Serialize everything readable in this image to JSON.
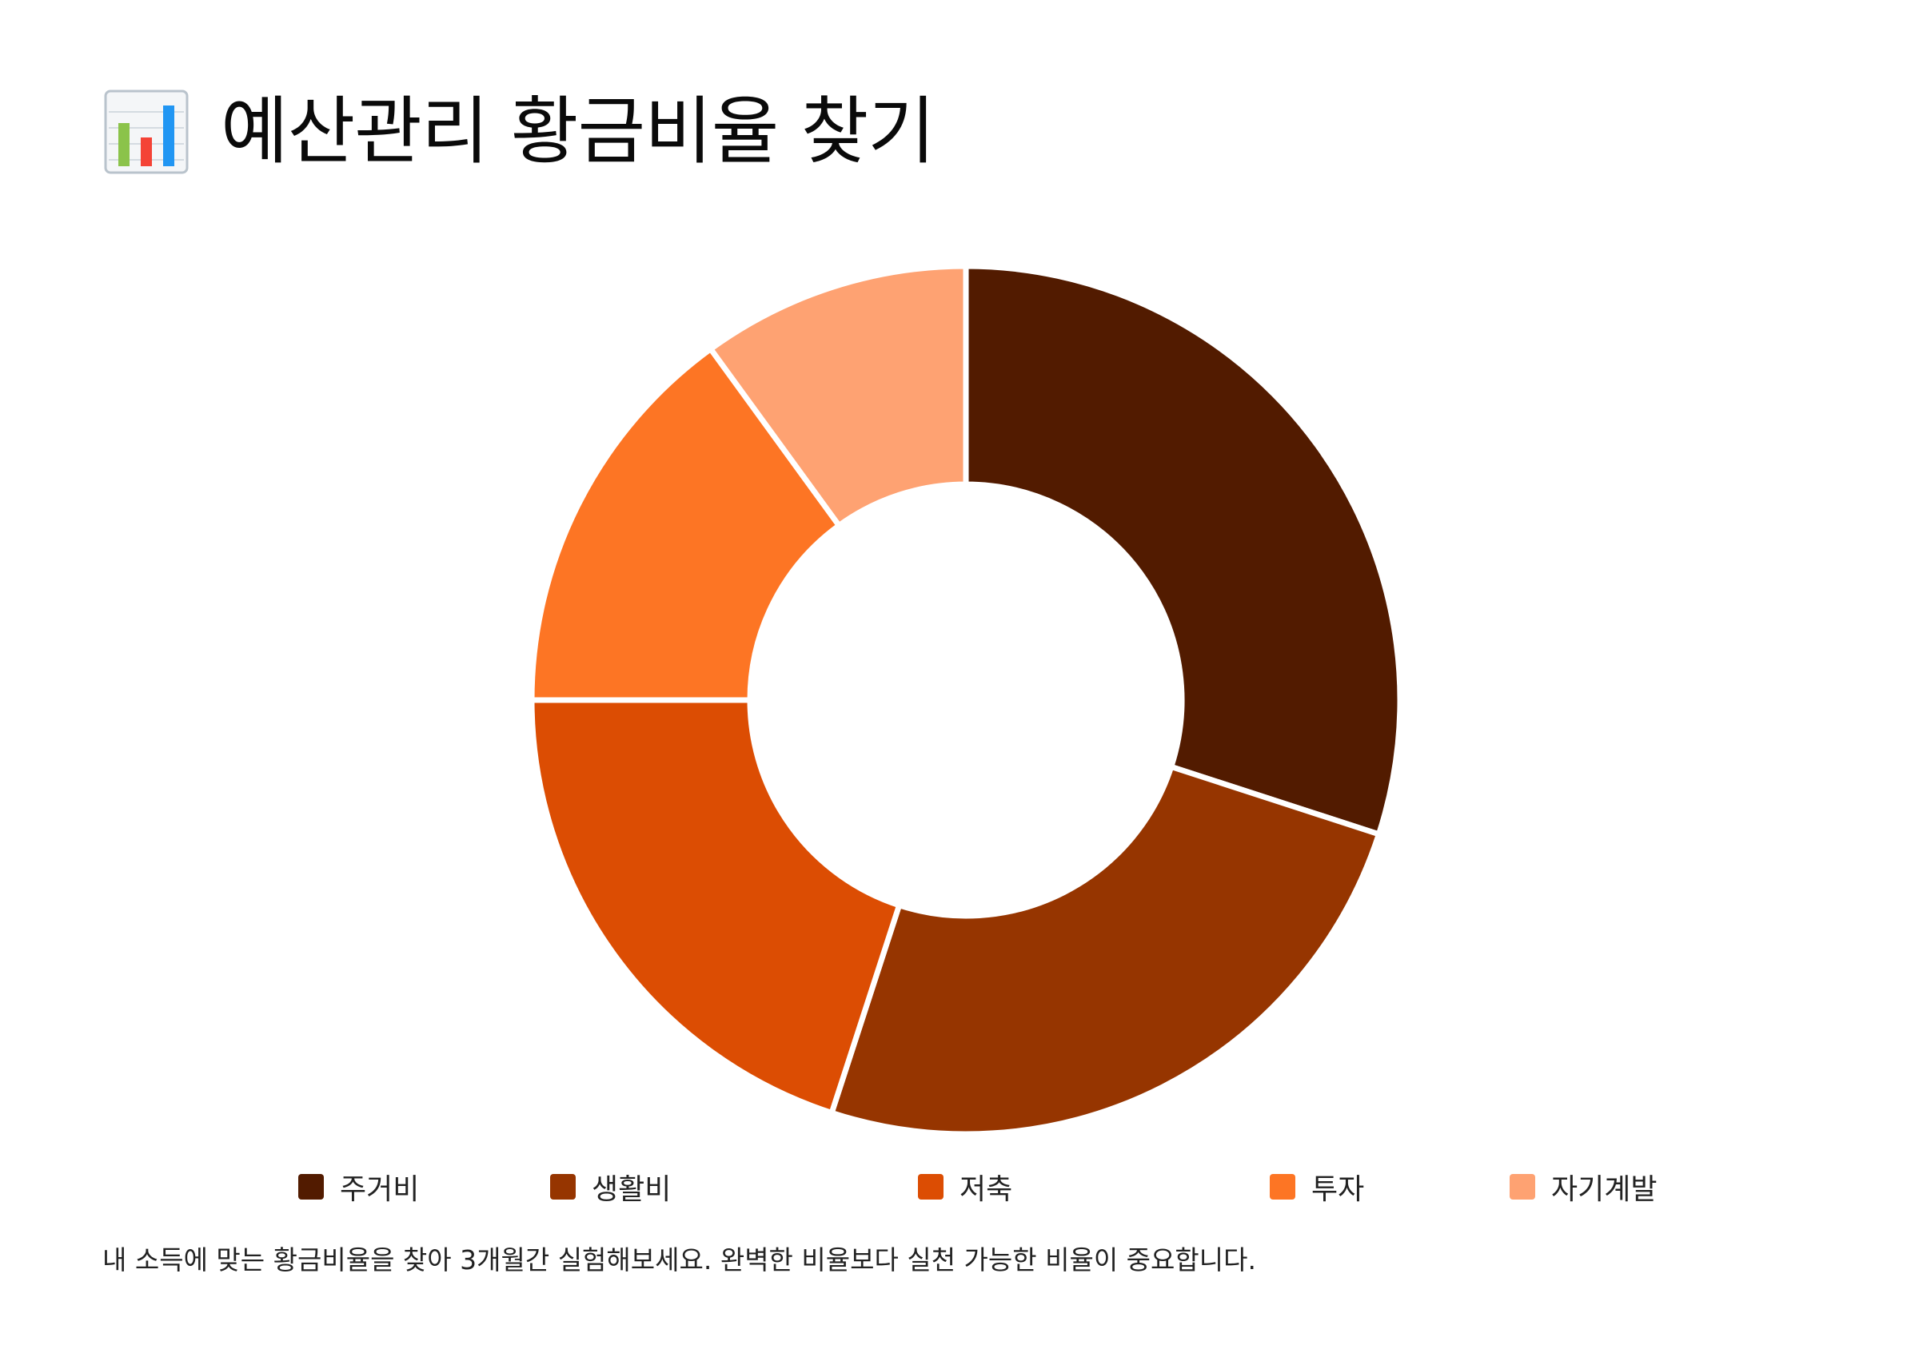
{
  "header": {
    "title": "예산관리 황금비율 찾기",
    "icon": "bar-chart-icon"
  },
  "chart_data": {
    "type": "pie",
    "variant": "donut",
    "categories": [
      "주거비",
      "생활비",
      "저축",
      "투자",
      "자기계발"
    ],
    "values": [
      30,
      25,
      20,
      15,
      10
    ],
    "colors": [
      "#521b00",
      "#963500",
      "#dc4d03",
      "#fd7524",
      "#fea272"
    ],
    "legend_position": "bottom",
    "title": "",
    "xlabel": "",
    "ylabel": ""
  },
  "footnote": "내 소득에 맞는 황금비율을 찾아 3개월간 실험해보세요. 완벽한 비율보다 실천 가능한 비율이 중요합니다."
}
